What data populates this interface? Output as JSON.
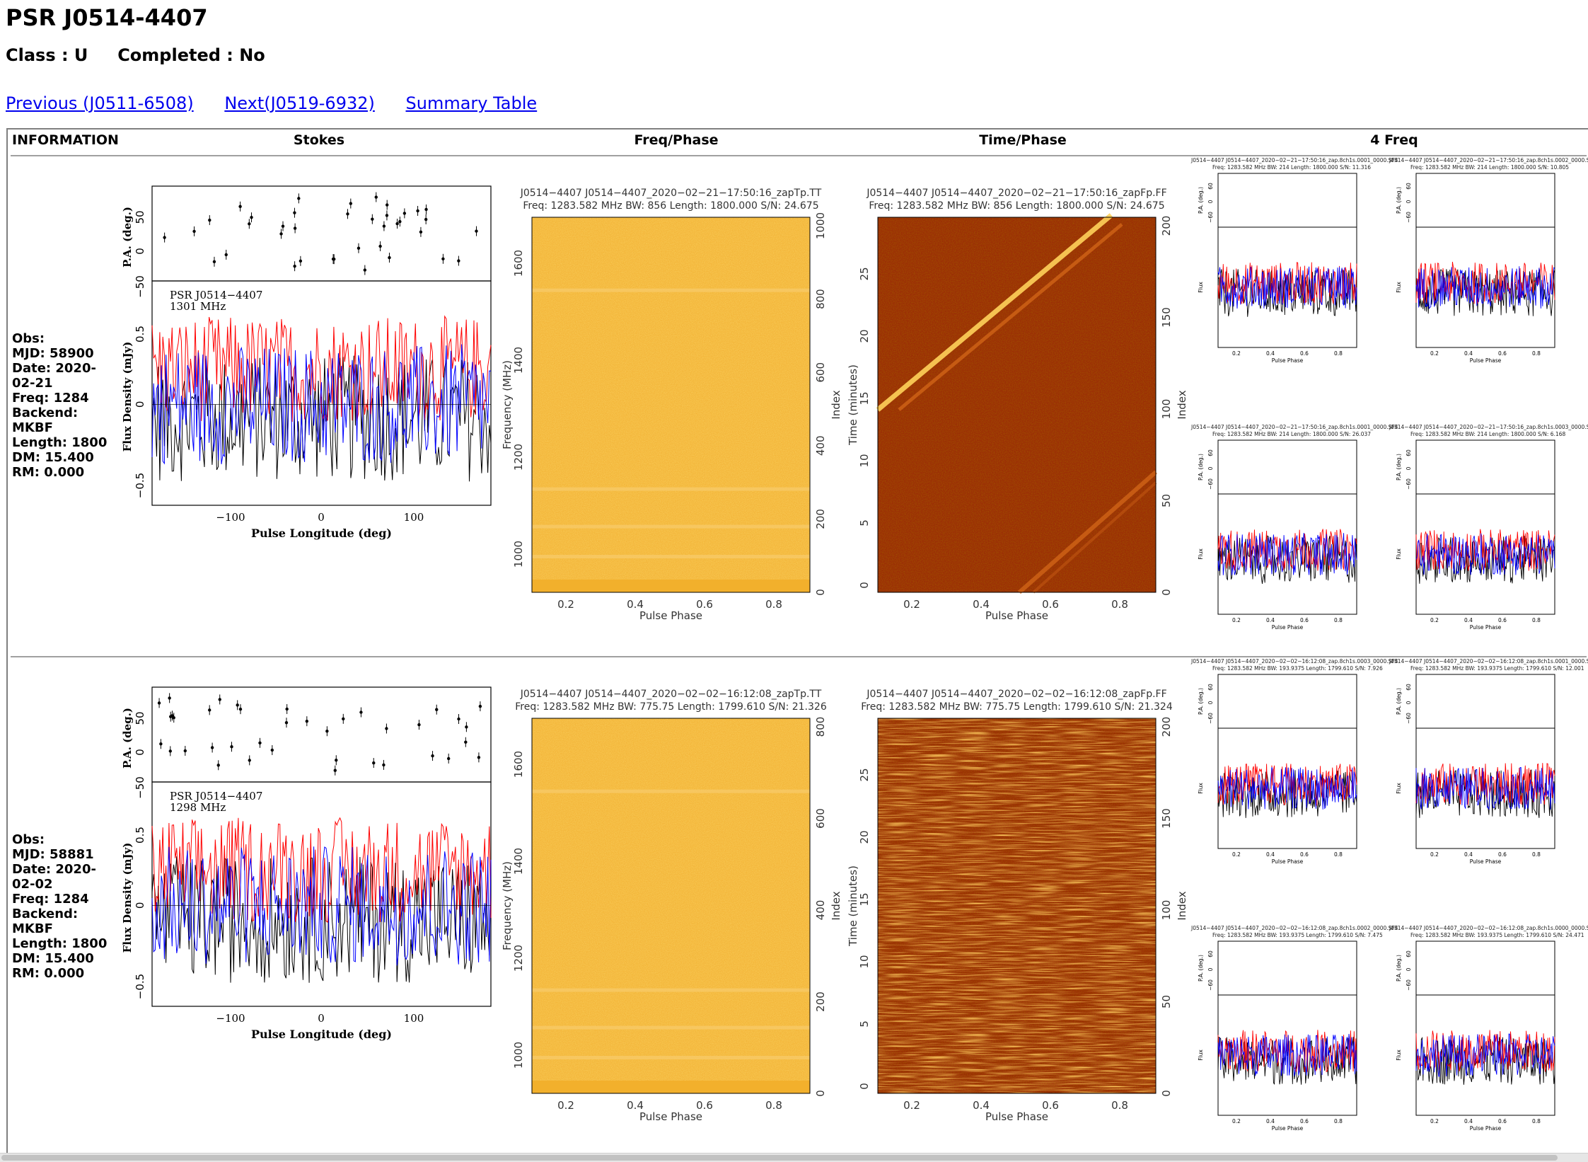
{
  "page": {
    "title": "PSR J0514-4407",
    "class_label": "Class : U",
    "completed_label": "Completed : No"
  },
  "nav": {
    "previous": "Previous (J0511-6508)",
    "next": "Next(J0519-6932)",
    "summary": "Summary Table"
  },
  "table": {
    "headers": [
      "INFORMATION",
      "Stokes",
      "Freq/Phase",
      "Time/Phase",
      "4 Freq"
    ]
  },
  "rows": [
    {
      "info": {
        "obs": "Obs:",
        "mjd": "MJD: 58900",
        "date": "Date: 2020-02-21",
        "freq": "Freq: 1284",
        "backend": "Backend: MKBF",
        "length": "Length: 1800",
        "dm": "DM: 15.400",
        "rm": "RM: 0.000"
      },
      "stokes": {
        "psr_label": "PSR J0514−4407",
        "mhz_label": "1301 MHz",
        "pa_axis": "P.A. (deg.)",
        "flux_axis": "Flux Density (mJy)",
        "x_axis": "Pulse Longitude (deg)",
        "pa_ticks": [
          "50",
          "0",
          "−50"
        ],
        "flux_ticks": [
          "0.5",
          "0",
          "−0.5"
        ],
        "x_ticks": [
          "−100",
          "0",
          "100"
        ]
      },
      "freqphase": {
        "title1": "J0514−4407 J0514−4407_2020−02−21−17:50:16_zapTp.TT",
        "title2": "Freq: 1283.582 MHz BW: 856 Length: 1800.000 S/N: 24.675",
        "ylabel": "Frequency (MHz)",
        "rlabel": "Index",
        "xlabel": "Pulse Phase",
        "yticks": [
          "1600",
          "1400",
          "1200",
          "1000"
        ],
        "rticks": [
          "1000",
          "800",
          "600",
          "400",
          "200",
          "0"
        ],
        "xticks": [
          "0.2",
          "0.4",
          "0.6",
          "0.8"
        ]
      },
      "timephase": {
        "title1": "J0514−4407 J0514−4407_2020−02−21−17:50:16_zapFp.FF",
        "title2": "Freq: 1283.582 MHz BW: 856 Length: 1800.000 S/N: 24.675",
        "ylabel": "Time (minutes)",
        "rlabel": "Index",
        "xlabel": "Pulse Phase",
        "yticks": [
          "25",
          "20",
          "15",
          "10",
          "5",
          "0"
        ],
        "rticks": [
          "200",
          "150",
          "100",
          "50",
          "0"
        ],
        "xticks": [
          "0.2",
          "0.4",
          "0.6",
          "0.8"
        ]
      },
      "fourfreq": [
        {
          "t1": "J0514−4407 J0514−4407_2020−02−21−17:50:16_zap.8ch1s.0001_0000.SF4",
          "t2": "Freq: 1283.582 MHz BW: 214 Length: 1800.000 S/N: 11.316"
        },
        {
          "t1": "J0514−4407 J0514−4407_2020−02−21−17:50:16_zap.8ch1s.0002_0000.SF",
          "t2": "Freq: 1283.582 MHz BW: 214 Length: 1800.000 S/N: 10.805"
        },
        {
          "t1": "J0514−4407 J0514−4407_2020−02−21−17:50:16_zap.8ch1s.0001_0000.SF4",
          "t2": "Freq: 1283.582 MHz BW: 214 Length: 1800.000 S/N: 26.037"
        },
        {
          "t1": "J0514−4407 J0514−4407_2020−02−21−17:50:16_zap.8ch1s.0003_0000.SF",
          "t2": "Freq: 1283.582 MHz BW: 214 Length: 1800.000 S/N: 6.168"
        }
      ]
    },
    {
      "info": {
        "obs": "Obs:",
        "mjd": "MJD: 58881",
        "date": "Date: 2020-02-02",
        "freq": "Freq: 1284",
        "backend": "Backend: MKBF",
        "length": "Length: 1800",
        "dm": "DM: 15.400",
        "rm": "RM: 0.000"
      },
      "stokes": {
        "psr_label": "PSR J0514−4407",
        "mhz_label": "1298 MHz",
        "pa_axis": "P.A. (deg.)",
        "flux_axis": "Flux Density (mJy)",
        "x_axis": "Pulse Longitude (deg)",
        "pa_ticks": [
          "50",
          "0",
          "−50"
        ],
        "flux_ticks": [
          "0.5",
          "0",
          "−0.5"
        ],
        "x_ticks": [
          "−100",
          "0",
          "100"
        ]
      },
      "freqphase": {
        "title1": "J0514−4407 J0514−4407_2020−02−02−16:12:08_zapTp.TT",
        "title2": "Freq: 1283.582 MHz BW: 775.75 Length: 1799.610 S/N: 21.326",
        "ylabel": "Frequency (MHz)",
        "rlabel": "Index",
        "xlabel": "Pulse Phase",
        "yticks": [
          "1600",
          "1400",
          "1200",
          "1000"
        ],
        "rticks": [
          "800",
          "600",
          "400",
          "200",
          "0"
        ],
        "xticks": [
          "0.2",
          "0.4",
          "0.6",
          "0.8"
        ]
      },
      "timephase": {
        "title1": "J0514−4407 J0514−4407_2020−02−02−16:12:08_zapFp.FF",
        "title2": "Freq: 1283.582 MHz BW: 775.75 Length: 1799.610 S/N: 21.324",
        "ylabel": "Time (minutes)",
        "rlabel": "Index",
        "xlabel": "Pulse Phase",
        "yticks": [
          "25",
          "20",
          "15",
          "10",
          "5",
          "0"
        ],
        "rticks": [
          "200",
          "150",
          "100",
          "50",
          "0"
        ],
        "xticks": [
          "0.2",
          "0.4",
          "0.6",
          "0.8"
        ]
      },
      "fourfreq": [
        {
          "t1": "J0514−4407 J0514−4407_2020−02−02−16:12:08_zap.8ch1s.0003_0000.SF4",
          "t2": "Freq: 1283.582 MHz BW: 193.9375 Length: 1799.610 S/N: 7.926"
        },
        {
          "t1": "J0514−4407 J0514−4407_2020−02−02−16:12:08_zap.8ch1s.0001_0000.SF",
          "t2": "Freq: 1283.582 MHz BW: 193.9375 Length: 1799.610 S/N: 12.001"
        },
        {
          "t1": "J0514−4407 J0514−4407_2020−02−02−16:12:08_zap.8ch1s.0002_0000.SF4",
          "t2": "Freq: 1283.582 MHz BW: 193.9375 Length: 1799.610 S/N: 7.475"
        },
        {
          "t1": "J0514−4407 J0514−4407_2020−02−02−16:12:08_zap.8ch1s.0000_0000.SF",
          "t2": "Freq: 1283.582 MHz BW: 193.9375 Length: 1799.610 S/N: 24.471"
        }
      ]
    }
  ],
  "sub_plot": {
    "pa_axis": "P.A. (deg.)",
    "flux_axis": "Flux",
    "x_axis": "Pulse Phase",
    "pa_ticks": [
      "60",
      "0",
      "−60"
    ],
    "x_ticks": [
      "0.2",
      "0.4",
      "0.6",
      "0.8"
    ]
  },
  "colors": {
    "link": "#0000ee",
    "stokes_I": "#000000",
    "stokes_L": "#ff0000",
    "stokes_V": "#0000ff",
    "freqphase_bg": "#f4b63a",
    "timephase_bg": "#9b2d05"
  }
}
